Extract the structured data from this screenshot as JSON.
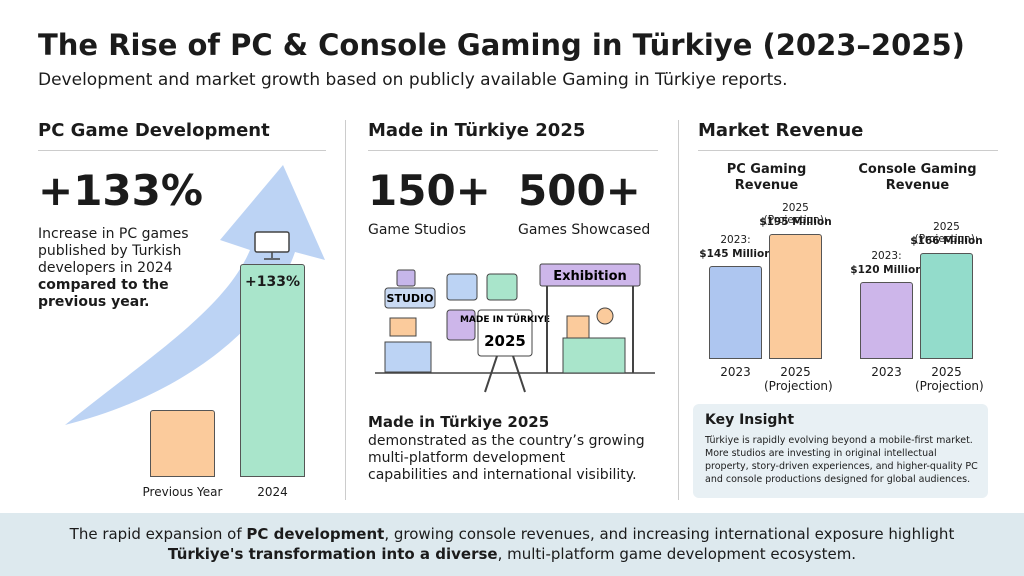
{
  "header": {
    "title": "The Rise of PC & Console Gaming in Türkiye (2023–2025)",
    "subtitle": "Development and market growth based on publicly available Gaming in Türkiye reports."
  },
  "pc_development": {
    "heading": "PC Game Development",
    "stat": "+133%",
    "description": "Increase in PC games published by Turkish developers in 2024",
    "description_bold": "compared to the previous year.",
    "bar_label": "+133%",
    "categories": [
      "Previous Year",
      "2024"
    ]
  },
  "made_in_turkiye": {
    "heading": "Made in Türkiye 2025",
    "stats": [
      {
        "value": "150+",
        "label": "Game Studios"
      },
      {
        "value": "500+",
        "label": "Games Showcased"
      }
    ],
    "illustration": {
      "studio": "STUDIO",
      "exhibition": "Exhibition",
      "sign_top": "MADE IN TÜRKIYE",
      "sign_year": "2025"
    },
    "caption_title": "Made in Türkiye 2025",
    "caption": "demonstrated as the country’s growing multi-platform development capabilities and international visibility."
  },
  "market_revenue": {
    "heading": "Market Revenue",
    "charts": [
      {
        "type": "bar",
        "title": "PC Gaming Revenue",
        "categories": [
          "2023",
          "2025 (Projection)"
        ],
        "values": [
          145,
          195
        ],
        "value_captions": [
          "2023:",
          "2025 (Projection):"
        ],
        "value_labels": [
          "$145 Million",
          "$195 Million"
        ],
        "colors": [
          "#aec6f0",
          "#fbcb9c"
        ]
      },
      {
        "type": "bar",
        "title": "Console Gaming Revenue",
        "categories": [
          "2023",
          "2025 (Projection)"
        ],
        "values": [
          120,
          166
        ],
        "value_captions": [
          "2023:",
          "2025 (Projection):"
        ],
        "value_labels": [
          "$120 Million",
          "$166 Million"
        ],
        "colors": [
          "#cdb6ea",
          "#93dccb"
        ]
      }
    ],
    "insight": {
      "title": "Key Insight",
      "text": "Türkiye is rapidly evolving beyond a mobile-first market. More studios are investing in original intellectual property, story-driven experiences, and higher-quality PC and console productions designed for global audiences."
    }
  },
  "footer": {
    "parts": [
      "The rapid expansion of ",
      "PC development",
      ", growing console revenues, and increasing international exposure highlight ",
      "Türkiye's transformation into a diverse",
      ", multi-platform game development ecosystem."
    ]
  }
}
